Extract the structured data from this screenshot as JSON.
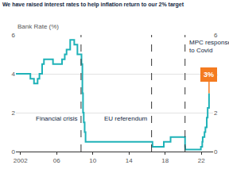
{
  "chart_data": {
    "type": "line",
    "title": "We have raised interest rates to help inflation return to our 2% target",
    "ylabel": "Bank Rate (%)",
    "x": [
      2001.5,
      2003.1,
      2003.5,
      2003.9,
      2004.1,
      2004.4,
      2004.6,
      2005.6,
      2006.6,
      2006.9,
      2007.1,
      2007.5,
      2007.95,
      2008.3,
      2008.75,
      2008.85,
      2008.92,
      2009.0,
      2009.1,
      2009.2,
      2016.6,
      2017.85,
      2018.6,
      2020.2,
      2020.22,
      2021.95,
      2022.1,
      2022.15,
      2022.35,
      2022.45,
      2022.6,
      2022.7,
      2022.85
    ],
    "values": [
      4,
      3.75,
      3.5,
      3.75,
      4,
      4.5,
      4.75,
      4.5,
      4.75,
      5,
      5.25,
      5.75,
      5.5,
      5,
      4.5,
      3,
      2,
      1.5,
      1,
      0.5,
      0.25,
      0.5,
      0.75,
      0.25,
      0.1,
      0.25,
      0.5,
      0.75,
      1,
      1.25,
      1.75,
      2.25,
      3
    ],
    "value_labels": [
      null,
      null,
      null,
      null,
      null,
      null,
      null,
      null,
      null,
      null,
      null,
      null,
      null,
      null,
      null,
      null,
      null,
      null,
      null,
      null,
      null,
      null,
      null,
      null,
      null,
      null,
      null,
      null,
      null,
      null,
      null,
      null,
      "3%"
    ],
    "color": "#1fb2b8",
    "line_style": "step",
    "xlim": [
      2001.5,
      2023.3
    ],
    "xticks": [
      2002,
      {
        "value": 2006,
        "label": "06"
      },
      {
        "value": 2010,
        "label": "10"
      },
      {
        "value": 2014,
        "label": "14"
      },
      {
        "value": 2018,
        "label": "18"
      },
      {
        "value": 2022,
        "label": "22"
      }
    ],
    "ylim": [
      0,
      6
    ],
    "yticks": [
      0,
      2,
      4,
      6
    ],
    "y2lim": [
      0,
      6
    ],
    "y2ticks": [
      0,
      2,
      4,
      6
    ],
    "grid": true,
    "events": [
      {
        "x": 2008.7,
        "label": "Financial crisis"
      },
      {
        "x": 2016.5,
        "label": "EU referendum"
      },
      {
        "x": 2020.2,
        "label": "MPC response\nto Covid"
      }
    ]
  }
}
